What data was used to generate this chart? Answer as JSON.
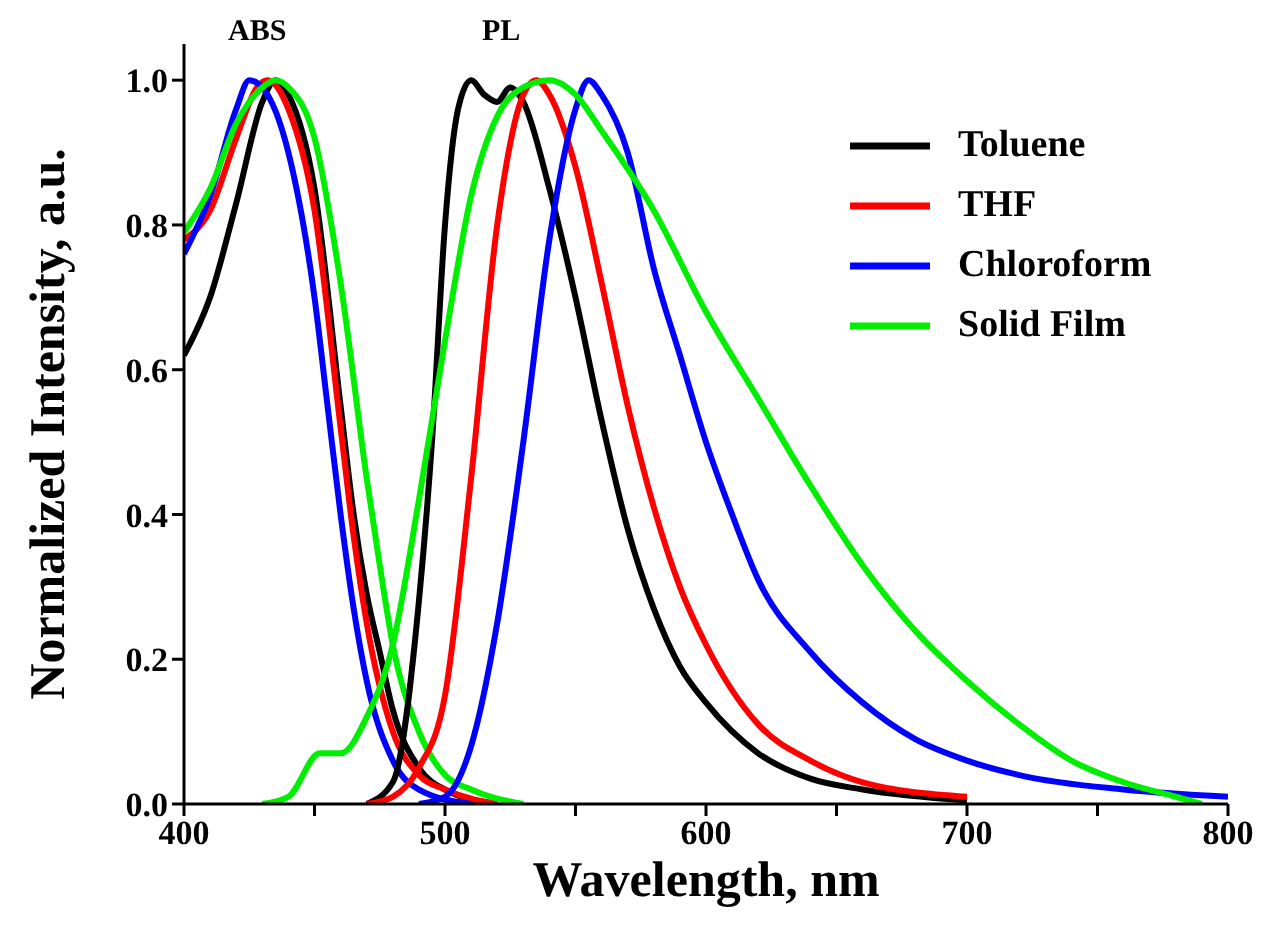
{
  "chart_data": {
    "type": "line",
    "xlabel": "Wavelength, nm",
    "ylabel": "Normalized Intensity, a.u.",
    "xlim": [
      400,
      800
    ],
    "ylim": [
      0,
      1.05
    ],
    "xticks": [
      400,
      {
        "value": 450,
        "label": null
      },
      500,
      {
        "value": 550,
        "label": null
      },
      600,
      {
        "value": 650,
        "label": null
      },
      700,
      {
        "value": 750,
        "label": null
      },
      800
    ],
    "yticks": [
      {
        "value": 0,
        "label": "0.0"
      },
      0.2,
      0.4,
      0.6,
      0.8,
      {
        "value": 1,
        "label": "1.0"
      }
    ],
    "grid": false,
    "legend": "top right",
    "marker": "none",
    "line_style": "solid",
    "annotations": [
      "ABS",
      "PL"
    ],
    "series": [
      {
        "color": "#000000",
        "x": [
          400,
          410,
          420,
          430,
          435,
          440,
          450,
          460,
          465,
          470,
          475,
          480,
          490,
          500,
          520
        ],
        "values": [
          0.62,
          0.7,
          0.83,
          0.97,
          1.0,
          0.98,
          0.85,
          0.55,
          0.4,
          0.29,
          0.21,
          0.13,
          0.05,
          0.02,
          0
        ]
      },
      {
        "color": "#ff0000",
        "x": [
          400,
          410,
          420,
          428,
          432,
          440,
          450,
          460,
          465,
          470,
          480,
          490,
          500,
          520
        ],
        "values": [
          0.78,
          0.82,
          0.92,
          0.99,
          1.0,
          0.96,
          0.82,
          0.52,
          0.37,
          0.25,
          0.1,
          0.04,
          0.02,
          0
        ]
      },
      {
        "color": "#0000ff",
        "x": [
          400,
          410,
          420,
          425,
          430,
          440,
          450,
          455,
          460,
          465,
          470,
          480,
          490,
          510
        ],
        "values": [
          0.76,
          0.84,
          0.96,
          1.0,
          0.99,
          0.9,
          0.7,
          0.55,
          0.4,
          0.27,
          0.17,
          0.06,
          0.02,
          0
        ]
      },
      {
        "color": "#00ee00",
        "x": [
          400,
          410,
          420,
          430,
          435,
          440,
          450,
          460,
          470,
          475,
          480,
          490,
          500,
          510,
          530
        ],
        "values": [
          0.79,
          0.85,
          0.94,
          0.99,
          1.0,
          0.99,
          0.92,
          0.72,
          0.45,
          0.33,
          0.22,
          0.1,
          0.04,
          0.02,
          0
        ]
      },
      {
        "name": "Toluene",
        "color": "#000000",
        "x": [
          470,
          480,
          490,
          495,
          500,
          505,
          510,
          515,
          520,
          525,
          530,
          540,
          550,
          560,
          570,
          580,
          590,
          600,
          620,
          640,
          660,
          700
        ],
        "values": [
          0,
          0.03,
          0.28,
          0.5,
          0.8,
          0.96,
          1.0,
          0.98,
          0.97,
          0.99,
          0.97,
          0.85,
          0.7,
          0.53,
          0.38,
          0.27,
          0.19,
          0.14,
          0.07,
          0.035,
          0.02,
          0.005
        ]
      },
      {
        "name": "THF",
        "color": "#ff0000",
        "x": [
          470,
          480,
          490,
          500,
          510,
          520,
          530,
          535,
          540,
          550,
          560,
          570,
          580,
          590,
          600,
          620,
          640,
          660,
          700
        ],
        "values": [
          0,
          0.01,
          0.05,
          0.15,
          0.45,
          0.8,
          0.98,
          1.0,
          0.98,
          0.88,
          0.72,
          0.55,
          0.41,
          0.3,
          0.22,
          0.11,
          0.06,
          0.03,
          0.01
        ]
      },
      {
        "name": "Chloroform",
        "color": "#0000ff",
        "x": [
          490,
          500,
          510,
          520,
          530,
          540,
          550,
          555,
          560,
          570,
          580,
          590,
          600,
          610,
          620,
          640,
          660,
          680,
          700,
          720,
          760,
          800
        ],
        "values": [
          0,
          0.01,
          0.08,
          0.25,
          0.5,
          0.78,
          0.96,
          1.0,
          0.98,
          0.9,
          0.74,
          0.62,
          0.5,
          0.4,
          0.31,
          0.21,
          0.14,
          0.09,
          0.06,
          0.04,
          0.02,
          0.01
        ]
      },
      {
        "name": "Solid Film",
        "color": "#00ee00",
        "x": [
          430,
          440,
          452,
          460,
          470,
          480,
          490,
          500,
          510,
          520,
          530,
          540,
          550,
          560,
          580,
          600,
          620,
          640,
          660,
          680,
          700,
          720,
          740,
          760,
          780,
          790
        ],
        "values": [
          0,
          0.01,
          0.07,
          0.07,
          0.12,
          0.22,
          0.42,
          0.64,
          0.84,
          0.95,
          0.99,
          1.0,
          0.98,
          0.93,
          0.82,
          0.68,
          0.56,
          0.44,
          0.33,
          0.24,
          0.17,
          0.11,
          0.06,
          0.03,
          0.01,
          0
        ]
      }
    ]
  }
}
